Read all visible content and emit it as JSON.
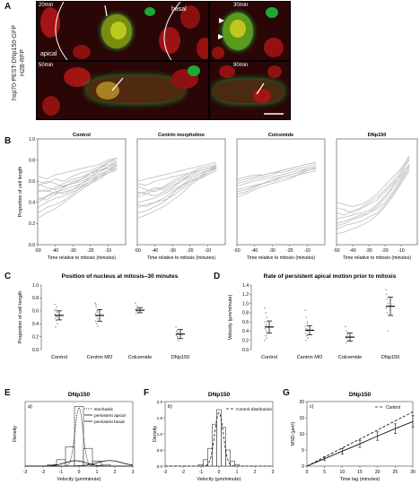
{
  "panels": {
    "A": {
      "label": "A",
      "side_label_line1": "hsp70-PEST-DNp150-GFP",
      "side_label_line2": "H2B-RFP",
      "frames": [
        {
          "time": "20min",
          "labels": [
            "apical",
            "basal"
          ]
        },
        {
          "time": "30min",
          "labels": []
        },
        {
          "time": "50min",
          "labels": []
        },
        {
          "time": "90min",
          "labels": []
        }
      ]
    },
    "B": {
      "label": "B"
    },
    "C": {
      "label": "C"
    },
    "D": {
      "label": "D"
    },
    "E": {
      "label": "E"
    },
    "F": {
      "label": "F"
    },
    "G": {
      "label": "G"
    }
  },
  "chart_data": [
    {
      "id": "B",
      "type": "line",
      "subplots": [
        {
          "title": "Control",
          "xlabel": "Time relative to mitosis (minutes)",
          "ylabel": "Proportion of cell length",
          "xlim": [
            -50,
            0
          ],
          "ylim": [
            0,
            1
          ],
          "xticks": [
            -50,
            -40,
            -30,
            -20,
            -10
          ],
          "yticks": [
            0,
            0.2,
            0.4,
            0.6,
            0.8,
            1.0
          ]
        },
        {
          "title": "Centrin morpholino",
          "xlabel": "Time relative to mitosis (minutes)",
          "xlim": [
            -50,
            0
          ],
          "ylim": [
            0,
            1
          ],
          "xticks": [
            -50,
            -40,
            -30,
            -20,
            -10
          ]
        },
        {
          "title": "Colcemide",
          "xlabel": "Time relative to mitosis (minutes)",
          "xlim": [
            -50,
            0
          ],
          "ylim": [
            0,
            1
          ],
          "xticks": [
            -50,
            -40,
            -30,
            -20,
            -10
          ]
        },
        {
          "title": "DNp150",
          "xlabel": "Time relative to mitosis (minutes)",
          "xlim": [
            -50,
            0
          ],
          "ylim": [
            0,
            1
          ],
          "xticks": [
            -50,
            -40,
            -30,
            -20,
            -10
          ]
        }
      ],
      "x": [
        -50,
        -45,
        -40,
        -35,
        -30,
        -25,
        -20,
        -15,
        -10,
        -5
      ],
      "traces": [
        [
          [
            0.5,
            0.52,
            0.48,
            0.55,
            0.58,
            0.62,
            0.66,
            0.72,
            0.78,
            0.8
          ],
          [
            0.4,
            0.45,
            0.5,
            0.52,
            0.55,
            0.58,
            0.64,
            0.7,
            0.74,
            0.76
          ],
          [
            0.6,
            0.58,
            0.62,
            0.6,
            0.65,
            0.68,
            0.7,
            0.74,
            0.78,
            0.82
          ],
          [
            0.3,
            0.35,
            0.38,
            0.42,
            0.48,
            0.55,
            0.6,
            0.66,
            0.7,
            0.72
          ],
          [
            0.55,
            0.6,
            0.58,
            0.54,
            0.6,
            0.62,
            0.68,
            0.72,
            0.76,
            0.78
          ],
          [
            0.45,
            0.42,
            0.48,
            0.5,
            0.52,
            0.56,
            0.6,
            0.64,
            0.7,
            0.74
          ],
          [
            0.65,
            0.62,
            0.66,
            0.68,
            0.7,
            0.72,
            0.74,
            0.76,
            0.8,
            0.82
          ],
          [
            0.35,
            0.4,
            0.44,
            0.46,
            0.5,
            0.54,
            0.58,
            0.62,
            0.68,
            0.7
          ],
          [
            0.52,
            0.5,
            0.54,
            0.58,
            0.62,
            0.64,
            0.68,
            0.7,
            0.72,
            0.75
          ],
          [
            0.25,
            0.3,
            0.34,
            0.4,
            0.46,
            0.52,
            0.58,
            0.64,
            0.68,
            0.72
          ],
          [
            0.58,
            0.54,
            0.52,
            0.56,
            0.58,
            0.6,
            0.64,
            0.68,
            0.74,
            0.78
          ],
          [
            0.42,
            0.46,
            0.5,
            0.48,
            0.52,
            0.58,
            0.62,
            0.66,
            0.7,
            0.76
          ]
        ],
        [
          [
            0.55,
            0.52,
            0.5,
            0.54,
            0.58,
            0.62,
            0.66,
            0.7,
            0.72,
            0.74
          ],
          [
            0.45,
            0.48,
            0.52,
            0.55,
            0.6,
            0.64,
            0.68,
            0.7,
            0.72,
            0.75
          ],
          [
            0.35,
            0.38,
            0.4,
            0.42,
            0.46,
            0.52,
            0.58,
            0.64,
            0.68,
            0.72
          ],
          [
            0.6,
            0.62,
            0.64,
            0.66,
            0.68,
            0.7,
            0.72,
            0.74,
            0.76,
            0.78
          ],
          [
            0.3,
            0.32,
            0.36,
            0.4,
            0.48,
            0.56,
            0.62,
            0.66,
            0.7,
            0.72
          ],
          [
            0.5,
            0.48,
            0.46,
            0.5,
            0.54,
            0.6,
            0.64,
            0.68,
            0.7,
            0.74
          ],
          [
            0.4,
            0.42,
            0.44,
            0.48,
            0.52,
            0.56,
            0.6,
            0.62,
            0.66,
            0.7
          ],
          [
            0.58,
            0.56,
            0.6,
            0.62,
            0.64,
            0.66,
            0.68,
            0.72,
            0.74,
            0.76
          ],
          [
            0.25,
            0.28,
            0.32,
            0.36,
            0.42,
            0.48,
            0.56,
            0.62,
            0.68,
            0.72
          ],
          [
            0.48,
            0.5,
            0.54,
            0.52,
            0.56,
            0.6,
            0.66,
            0.7,
            0.72,
            0.74
          ],
          [
            0.38,
            0.36,
            0.4,
            0.44,
            0.5,
            0.54,
            0.6,
            0.64,
            0.7,
            0.73
          ]
        ],
        [
          [
            0.55,
            0.58,
            0.6,
            0.62,
            0.64,
            0.66,
            0.68,
            0.7,
            0.72,
            0.74
          ],
          [
            0.5,
            0.52,
            0.55,
            0.58,
            0.6,
            0.62,
            0.64,
            0.66,
            0.7,
            0.72
          ],
          [
            0.6,
            0.62,
            0.64,
            0.66,
            0.68,
            0.68,
            0.7,
            0.72,
            0.74,
            0.76
          ],
          [
            0.45,
            0.48,
            0.52,
            0.55,
            0.58,
            0.6,
            0.62,
            0.66,
            0.68,
            0.7
          ],
          [
            0.58,
            0.6,
            0.62,
            0.64,
            0.66,
            0.7,
            0.72,
            0.74,
            0.76,
            0.78
          ],
          [
            0.52,
            0.54,
            0.56,
            0.58,
            0.62,
            0.64,
            0.66,
            0.68,
            0.7,
            0.73
          ],
          [
            0.48,
            0.5,
            0.54,
            0.58,
            0.6,
            0.64,
            0.66,
            0.68,
            0.72,
            0.74
          ],
          [
            0.62,
            0.64,
            0.66,
            0.66,
            0.68,
            0.7,
            0.72,
            0.74,
            0.76,
            0.78
          ]
        ],
        [
          [
            0.2,
            0.22,
            0.25,
            0.28,
            0.3,
            0.34,
            0.4,
            0.5,
            0.62,
            0.75
          ],
          [
            0.15,
            0.18,
            0.2,
            0.22,
            0.26,
            0.3,
            0.38,
            0.48,
            0.6,
            0.72
          ],
          [
            0.3,
            0.28,
            0.32,
            0.35,
            0.4,
            0.45,
            0.52,
            0.6,
            0.7,
            0.82
          ],
          [
            0.1,
            0.12,
            0.15,
            0.18,
            0.22,
            0.28,
            0.36,
            0.46,
            0.58,
            0.7
          ],
          [
            0.25,
            0.26,
            0.28,
            0.3,
            0.32,
            0.38,
            0.46,
            0.56,
            0.68,
            0.8
          ],
          [
            0.35,
            0.33,
            0.3,
            0.34,
            0.38,
            0.42,
            0.5,
            0.58,
            0.66,
            0.76
          ],
          [
            0.18,
            0.2,
            0.24,
            0.26,
            0.3,
            0.36,
            0.44,
            0.54,
            0.64,
            0.74
          ],
          [
            0.4,
            0.38,
            0.36,
            0.38,
            0.42,
            0.48,
            0.56,
            0.64,
            0.72,
            0.84
          ]
        ]
      ]
    },
    {
      "id": "C",
      "type": "scatter",
      "title": "Position of nucleus at mitosis–30 minutes",
      "ylabel": "Proportion of cell length",
      "categories": [
        "Control",
        "Centrin MO",
        "Colcemide",
        "DNp150"
      ],
      "ylim": [
        0,
        1
      ],
      "yticks": [
        0,
        0.2,
        0.4,
        0.6,
        0.8,
        1.0
      ],
      "means": [
        0.53,
        0.53,
        0.61,
        0.24
      ],
      "errors": [
        0.07,
        0.09,
        0.04,
        0.07
      ],
      "points": [
        [
          0.7,
          0.62,
          0.58,
          0.55,
          0.52,
          0.5,
          0.48,
          0.45,
          0.4,
          0.35,
          0.66,
          0.6
        ],
        [
          0.72,
          0.66,
          0.6,
          0.56,
          0.52,
          0.48,
          0.44,
          0.4,
          0.36,
          0.7,
          0.58
        ],
        [
          0.72,
          0.68,
          0.65,
          0.62,
          0.6,
          0.58,
          0.56,
          0.64
        ],
        [
          0.35,
          0.3,
          0.26,
          0.22,
          0.18,
          0.14,
          0.28,
          0.2
        ]
      ]
    },
    {
      "id": "D",
      "type": "scatter",
      "title": "Rate of persistent apical motion prior to mitosis",
      "ylabel": "Velocity (μm/minute)",
      "categories": [
        "Control",
        "Centrin MO",
        "Colcemide",
        "DNp150"
      ],
      "ylim": [
        0,
        1.4
      ],
      "yticks": [
        0,
        0.2,
        0.4,
        0.6,
        0.8,
        1.0,
        1.2,
        1.4
      ],
      "means": [
        0.49,
        0.42,
        0.27,
        0.94
      ],
      "errors": [
        0.13,
        0.1,
        0.09,
        0.2
      ],
      "points": [
        [
          0.9,
          0.8,
          0.7,
          0.6,
          0.55,
          0.5,
          0.45,
          0.4,
          0.35,
          0.3,
          0.25,
          0.2
        ],
        [
          0.85,
          0.7,
          0.6,
          0.5,
          0.45,
          0.4,
          0.35,
          0.3,
          0.25,
          0.2,
          0.55
        ],
        [
          0.5,
          0.4,
          0.32,
          0.28,
          0.25,
          0.2,
          0.15,
          0.35
        ],
        [
          1.3,
          1.1,
          1.0,
          0.9,
          0.8,
          0.4,
          1.2
        ]
      ]
    },
    {
      "id": "E",
      "type": "bar",
      "title": "DNp150",
      "subpanel": "a)",
      "xlabel": "Velocity (μm/minute)",
      "ylabel": "Density",
      "xlim": [
        -3,
        3
      ],
      "xticks": [
        -3,
        -2,
        -1,
        0,
        1,
        2,
        3
      ],
      "categories": [
        -1.5,
        -1.0,
        -0.5,
        0.0,
        0.5,
        1.0,
        1.5
      ],
      "values": [
        0.05,
        0.2,
        0.6,
        1.85,
        0.55,
        0.15,
        0.05
      ],
      "series": [
        {
          "name": "stochastic",
          "style": "dotted",
          "mu": 0.0,
          "sd": 0.22,
          "weight": 1.0
        },
        {
          "name": "persistent apical",
          "style": "solid",
          "mu": 1.7,
          "sd": 0.7,
          "weight": 0.3
        },
        {
          "name": "persistent basal",
          "style": "solid",
          "mu": -0.2,
          "sd": 0.6,
          "weight": 0.25
        }
      ]
    },
    {
      "id": "F",
      "type": "bar",
      "title": "DNp150",
      "subpanel": "b)",
      "xlabel": "Velocity (μm/minute)",
      "ylabel": "Density",
      "xlim": [
        -3,
        3
      ],
      "xticks": [
        -3,
        -2,
        -1,
        0,
        1,
        2,
        3
      ],
      "yticks": [
        0.0,
        0.5,
        1.0,
        1.5,
        2.0
      ],
      "categories": [
        -1.0,
        -0.75,
        -0.5,
        -0.25,
        0.0,
        0.25,
        0.5,
        0.75,
        1.0
      ],
      "values": [
        0.05,
        0.2,
        0.55,
        1.3,
        1.75,
        1.2,
        0.5,
        0.15,
        0.05
      ],
      "series": [
        {
          "name": "Control distribution",
          "style": "dashed",
          "mu": 0.0,
          "sd": 0.24
        }
      ]
    },
    {
      "id": "G",
      "type": "line",
      "title": "DNp150",
      "subpanel": "c)",
      "xlabel": "Time lag (minutes)",
      "ylabel": "MSD (μm²)",
      "xlim": [
        0,
        30
      ],
      "ylim": [
        0,
        20
      ],
      "xticks": [
        0,
        5,
        10,
        15,
        20,
        25,
        30
      ],
      "yticks": [
        0,
        5,
        10,
        15,
        20
      ],
      "x": [
        0,
        5,
        10,
        15,
        20,
        25,
        30
      ],
      "series": [
        {
          "name": "DNp150",
          "style": "solid",
          "values": [
            0,
            2.3,
            4.6,
            6.9,
            9.3,
            11.6,
            13.8
          ],
          "errors": [
            0,
            0.6,
            0.9,
            1.1,
            1.3,
            1.5,
            1.8
          ]
        },
        {
          "name": "Control",
          "style": "dashed",
          "values": [
            0,
            2.8,
            5.6,
            8.4,
            11.2,
            14.0,
            16.8
          ]
        }
      ]
    }
  ]
}
